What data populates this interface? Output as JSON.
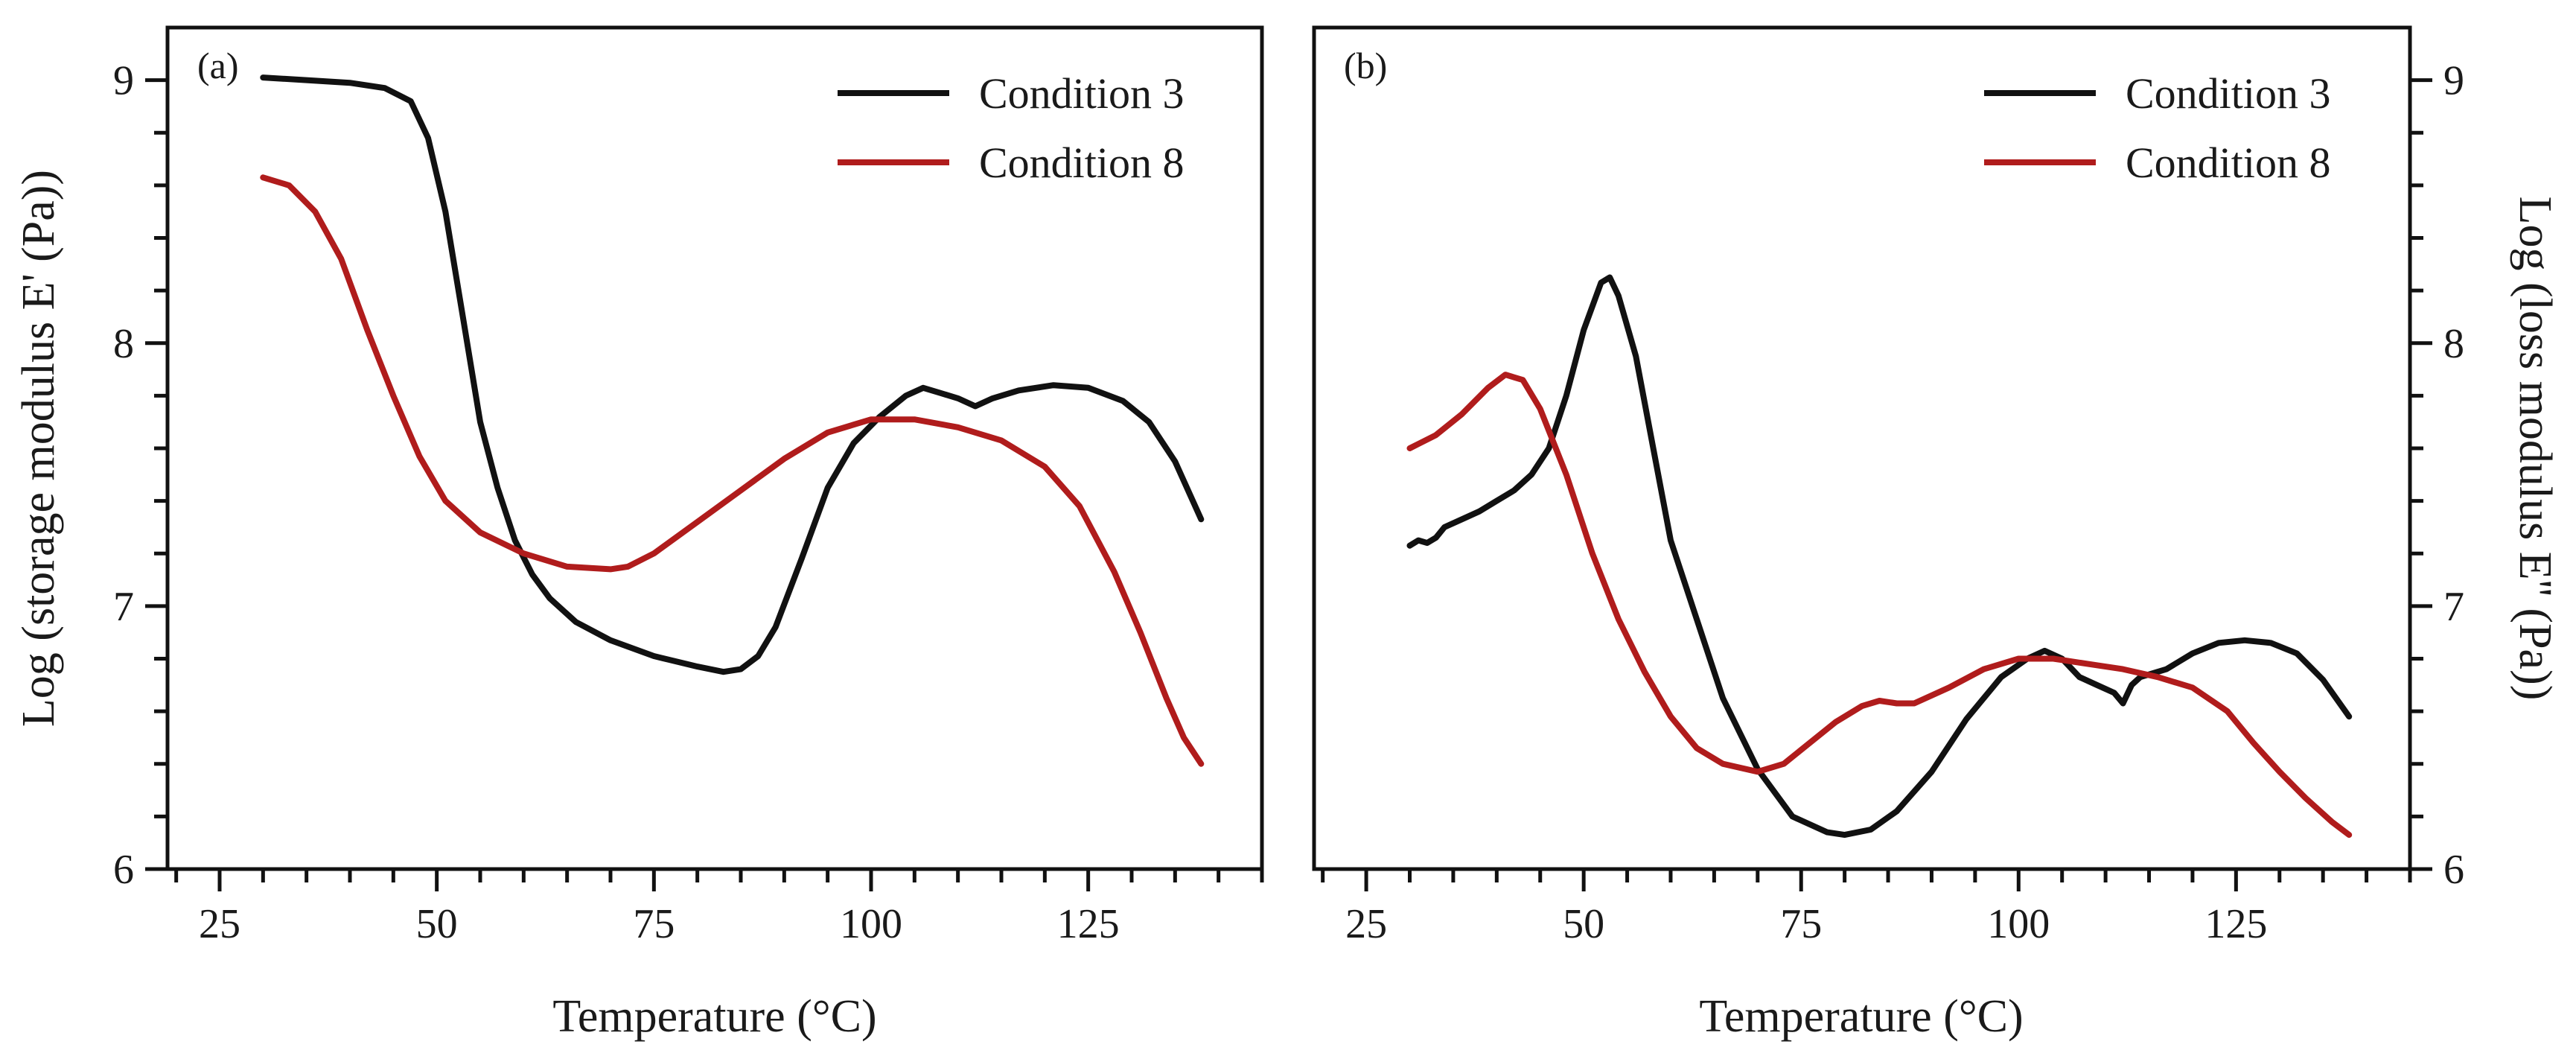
{
  "colors": {
    "condition_3": "#111111",
    "condition_8": "#b01c1c"
  },
  "chart_data": [
    {
      "type": "line",
      "panel_label": "(a)",
      "xlabel": "Temperature (°C)",
      "ylabel": "Log (storage modulus E' (Pa))",
      "xlim": [
        19,
        145
      ],
      "ylim": [
        6,
        9.2
      ],
      "x_ticks": [
        25,
        50,
        75,
        100,
        125
      ],
      "y_ticks": [
        6,
        7,
        8,
        9
      ],
      "y_axis_side": "left",
      "legend_position": "top-right",
      "series": [
        {
          "name": "Condition 3",
          "color": "#111111",
          "x": [
            30,
            35,
            40,
            44,
            47,
            49,
            51,
            53,
            55,
            57,
            59,
            61,
            63,
            66,
            70,
            75,
            80,
            83,
            85,
            87,
            89,
            92,
            95,
            98,
            101,
            104,
            106,
            108,
            110,
            112,
            114,
            117,
            121,
            125,
            129,
            132,
            135,
            138
          ],
          "y": [
            9.01,
            9.0,
            8.99,
            8.97,
            8.92,
            8.78,
            8.5,
            8.1,
            7.7,
            7.45,
            7.25,
            7.12,
            7.03,
            6.94,
            6.87,
            6.81,
            6.77,
            6.75,
            6.76,
            6.81,
            6.92,
            7.18,
            7.45,
            7.62,
            7.72,
            7.8,
            7.83,
            7.81,
            7.79,
            7.76,
            7.79,
            7.82,
            7.84,
            7.83,
            7.78,
            7.7,
            7.55,
            7.33
          ]
        },
        {
          "name": "Condition 8",
          "color": "#b01c1c",
          "x": [
            30,
            33,
            36,
            39,
            42,
            45,
            48,
            51,
            55,
            60,
            65,
            70,
            72,
            75,
            80,
            85,
            90,
            95,
            100,
            105,
            110,
            115,
            120,
            124,
            128,
            131,
            134,
            136,
            138
          ],
          "y": [
            8.63,
            8.6,
            8.5,
            8.32,
            8.05,
            7.8,
            7.57,
            7.4,
            7.28,
            7.2,
            7.15,
            7.14,
            7.15,
            7.2,
            7.32,
            7.44,
            7.56,
            7.66,
            7.71,
            7.71,
            7.68,
            7.63,
            7.53,
            7.38,
            7.13,
            6.9,
            6.65,
            6.5,
            6.4
          ]
        }
      ]
    },
    {
      "type": "line",
      "panel_label": "(b)",
      "xlabel": "Temperature (°C)",
      "ylabel": "Log (loss modulus E'' (Pa))",
      "xlim": [
        19,
        145
      ],
      "ylim": [
        6,
        9.2
      ],
      "x_ticks": [
        25,
        50,
        75,
        100,
        125
      ],
      "y_ticks": [
        6,
        7,
        8,
        9
      ],
      "y_axis_side": "right",
      "legend_position": "top-right",
      "series": [
        {
          "name": "Condition 3",
          "color": "#111111",
          "x": [
            30,
            31,
            32,
            33,
            34,
            36,
            38,
            40,
            42,
            44,
            46,
            48,
            50,
            52,
            53,
            54,
            56,
            58,
            60,
            63,
            66,
            70,
            74,
            78,
            80,
            83,
            86,
            90,
            94,
            98,
            101,
            103,
            105,
            107,
            109,
            111,
            112,
            113,
            114,
            117,
            120,
            123,
            126,
            129,
            132,
            135,
            138
          ],
          "y": [
            7.23,
            7.25,
            7.24,
            7.26,
            7.3,
            7.33,
            7.36,
            7.4,
            7.44,
            7.5,
            7.6,
            7.8,
            8.05,
            8.23,
            8.25,
            8.18,
            7.95,
            7.6,
            7.25,
            6.95,
            6.65,
            6.38,
            6.2,
            6.14,
            6.13,
            6.15,
            6.22,
            6.37,
            6.57,
            6.73,
            6.8,
            6.83,
            6.8,
            6.73,
            6.7,
            6.67,
            6.63,
            6.7,
            6.73,
            6.76,
            6.82,
            6.86,
            6.87,
            6.86,
            6.82,
            6.72,
            6.58
          ]
        },
        {
          "name": "Condition 8",
          "color": "#b01c1c",
          "x": [
            30,
            33,
            36,
            39,
            41,
            43,
            45,
            48,
            51,
            54,
            57,
            60,
            63,
            66,
            70,
            73,
            76,
            79,
            82,
            84,
            86,
            88,
            92,
            96,
            100,
            104,
            108,
            112,
            116,
            120,
            124,
            127,
            130,
            133,
            136,
            138
          ],
          "y": [
            7.6,
            7.65,
            7.73,
            7.83,
            7.88,
            7.86,
            7.75,
            7.5,
            7.2,
            6.95,
            6.75,
            6.58,
            6.46,
            6.4,
            6.37,
            6.4,
            6.48,
            6.56,
            6.62,
            6.64,
            6.63,
            6.63,
            6.69,
            6.76,
            6.8,
            6.8,
            6.78,
            6.76,
            6.73,
            6.69,
            6.6,
            6.48,
            6.37,
            6.27,
            6.18,
            6.13
          ]
        }
      ]
    }
  ]
}
